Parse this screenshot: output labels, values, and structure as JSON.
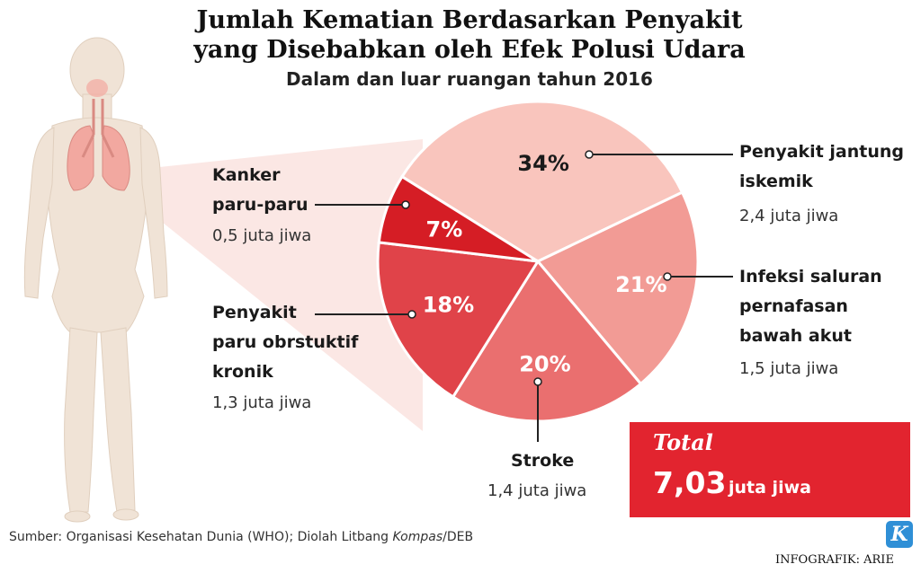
{
  "title_line1": "Jumlah Kematian Berdasarkan Penyakit",
  "title_line2": "yang Disebabkan oleh Efek Polusi Udara",
  "subtitle": "Dalam dan luar ruangan tahun 2016",
  "chart_data": {
    "type": "pie",
    "unit": "juta jiwa",
    "slices": [
      {
        "label_lines": [
          "Penyakit jantung",
          "iskemik"
        ],
        "value": 2.4,
        "value_text": "2,4 juta jiwa",
        "percent_text": "34%",
        "percent": 34,
        "color": "#f9c5bd",
        "pct_color": "#1a1a1a"
      },
      {
        "label_lines": [
          "Infeksi saluran",
          "pernafasan",
          "bawah akut"
        ],
        "value": 1.5,
        "value_text": "1,5 juta jiwa",
        "percent_text": "21%",
        "percent": 21,
        "color": "#f29b95",
        "pct_color": "#ffffff"
      },
      {
        "label_lines": [
          "Stroke"
        ],
        "value": 1.4,
        "value_text": "1,4 juta jiwa",
        "percent_text": "20%",
        "percent": 20,
        "color": "#ea6f6f",
        "pct_color": "#ffffff"
      },
      {
        "label_lines": [
          "Penyakit",
          "paru obrstuktif",
          "kronik"
        ],
        "value": 1.3,
        "value_text": "1,3 juta jiwa",
        "percent_text": "18%",
        "percent": 18,
        "color": "#e04349",
        "pct_color": "#ffffff"
      },
      {
        "label_lines": [
          "Kanker",
          "paru-paru"
        ],
        "value": 0.5,
        "value_text": "0,5 juta jiwa",
        "percent_text": "7%",
        "percent": 7,
        "color": "#d51d25",
        "pct_color": "#ffffff"
      }
    ]
  },
  "total": {
    "label": "Total",
    "value": "7,03",
    "unit": "juta jiwa"
  },
  "source_prefix": "Sumber: Organisasi Kesehatan Dunia (WHO); Diolah Litbang ",
  "source_italic": "Kompas",
  "source_suffix": "/DEB",
  "logo_letter": "K",
  "credit": "INFOGRAFIK: ARIE",
  "colors": {
    "accent": "#e2242f",
    "logo": "#2f8fd6"
  }
}
